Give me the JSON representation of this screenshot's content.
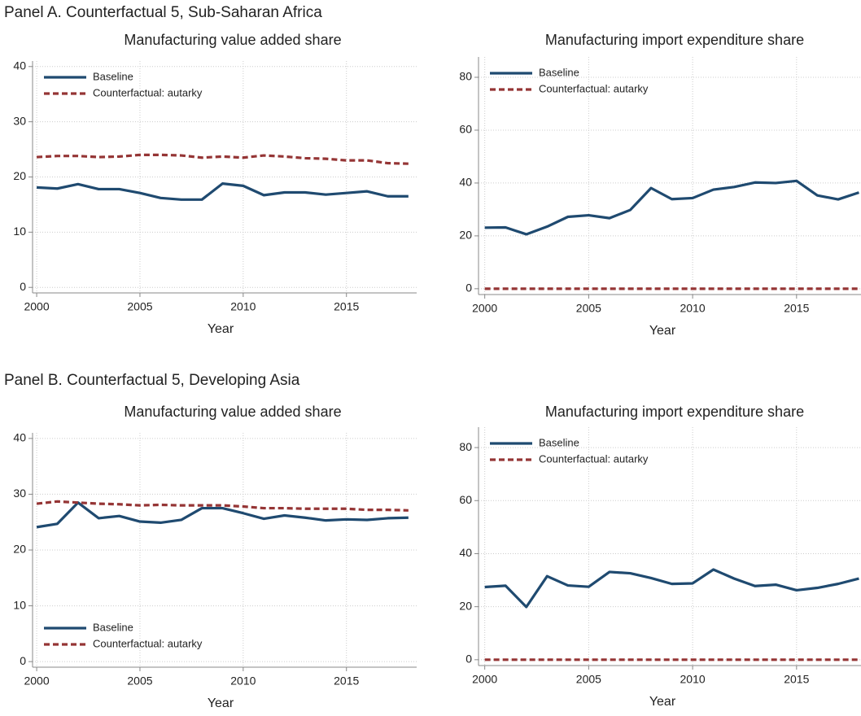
{
  "panels": [
    "Panel A. Counterfactual 5, Sub-Saharan Africa",
    "Panel B. Counterfactual 5, Developing Asia"
  ],
  "chart_data": [
    {
      "type": "line",
      "title": "Manufacturing value added share",
      "xlabel": "Year",
      "x": [
        2000,
        2001,
        2002,
        2003,
        2004,
        2005,
        2006,
        2007,
        2008,
        2009,
        2010,
        2011,
        2012,
        2013,
        2014,
        2015,
        2016,
        2017,
        2018
      ],
      "xlim": [
        1999.8,
        2018.4
      ],
      "xticks": [
        2000,
        2005,
        2010,
        2015
      ],
      "ylim": [
        -1,
        41
      ],
      "yticks": [
        0,
        10,
        20,
        30,
        40
      ],
      "grid": true,
      "legend": "upper left",
      "series": [
        {
          "name": "Baseline",
          "color": "#1f4a70",
          "linestyle": "solid",
          "values": [
            18.1,
            17.9,
            18.7,
            17.8,
            17.8,
            17.1,
            16.2,
            15.9,
            15.9,
            18.8,
            18.4,
            16.7,
            17.2,
            17.2,
            16.8,
            17.1,
            17.4,
            16.5,
            16.5
          ]
        },
        {
          "name": "Counterfactual: autarky",
          "color": "#953535",
          "linestyle": "dashed",
          "values": [
            23.6,
            23.8,
            23.8,
            23.6,
            23.7,
            24.0,
            24.0,
            23.9,
            23.5,
            23.7,
            23.5,
            23.9,
            23.7,
            23.4,
            23.3,
            23.0,
            23.0,
            22.5,
            22.4
          ]
        }
      ]
    },
    {
      "type": "line",
      "title": "Manufacturing import expenditure share",
      "xlabel": "Year",
      "x": [
        2000,
        2001,
        2002,
        2003,
        2004,
        2005,
        2006,
        2007,
        2008,
        2009,
        2010,
        2011,
        2012,
        2013,
        2014,
        2015,
        2016,
        2017,
        2018
      ],
      "xlim": [
        1999.7,
        2018.1
      ],
      "xticks": [
        2000,
        2005,
        2010,
        2015
      ],
      "ylim": [
        -2.2,
        87.7
      ],
      "yticks": [
        0,
        20,
        40,
        60,
        80
      ],
      "grid": true,
      "legend": "upper left",
      "series": [
        {
          "name": "Baseline",
          "color": "#1f4a70",
          "linestyle": "solid",
          "values": [
            23.1,
            23.2,
            20.6,
            23.5,
            27.2,
            27.8,
            26.7,
            29.8,
            38.1,
            33.9,
            34.3,
            37.5,
            38.5,
            40.2,
            40.0,
            40.8,
            35.3,
            33.8,
            36.4
          ]
        },
        {
          "name": "Counterfactual: autarky",
          "color": "#953535",
          "linestyle": "dashed",
          "values": [
            0,
            0,
            0,
            0,
            0,
            0,
            0,
            0,
            0,
            0,
            0,
            0,
            0,
            0,
            0,
            0,
            0,
            0,
            0
          ]
        }
      ]
    },
    {
      "type": "line",
      "title": "Manufacturing value added share",
      "xlabel": "Year",
      "x": [
        2000,
        2001,
        2002,
        2003,
        2004,
        2005,
        2006,
        2007,
        2008,
        2009,
        2010,
        2011,
        2012,
        2013,
        2014,
        2015,
        2016,
        2017,
        2018
      ],
      "xlim": [
        1999.8,
        2018.4
      ],
      "xticks": [
        2000,
        2005,
        2010,
        2015
      ],
      "ylim": [
        -1,
        41
      ],
      "yticks": [
        0,
        10,
        20,
        30,
        40
      ],
      "grid": true,
      "legend": "lower left",
      "series": [
        {
          "name": "Baseline",
          "color": "#1f4a70",
          "linestyle": "solid",
          "values": [
            24.1,
            24.7,
            28.5,
            25.7,
            26.1,
            25.1,
            24.9,
            25.4,
            27.5,
            27.5,
            26.6,
            25.6,
            26.2,
            25.8,
            25.3,
            25.5,
            25.4,
            25.7,
            25.8
          ]
        },
        {
          "name": "Counterfactual: autarky",
          "color": "#953535",
          "linestyle": "dashed",
          "values": [
            28.3,
            28.7,
            28.5,
            28.3,
            28.2,
            28.0,
            28.1,
            28.0,
            28.0,
            28.0,
            27.8,
            27.5,
            27.5,
            27.4,
            27.4,
            27.4,
            27.2,
            27.2,
            27.1
          ]
        }
      ]
    },
    {
      "type": "line",
      "title": "Manufacturing import expenditure share",
      "xlabel": "Year",
      "x": [
        2000,
        2001,
        2002,
        2003,
        2004,
        2005,
        2006,
        2007,
        2008,
        2009,
        2010,
        2011,
        2012,
        2013,
        2014,
        2015,
        2016,
        2017,
        2018
      ],
      "xlim": [
        1999.7,
        2018.1
      ],
      "xticks": [
        2000,
        2005,
        2010,
        2015
      ],
      "ylim": [
        -2.2,
        87.7
      ],
      "yticks": [
        0,
        20,
        40,
        60,
        80
      ],
      "grid": true,
      "legend": "upper left",
      "series": [
        {
          "name": "Baseline",
          "color": "#1f4a70",
          "linestyle": "solid",
          "values": [
            27.4,
            27.9,
            19.9,
            31.5,
            28.0,
            27.5,
            33.1,
            32.6,
            30.8,
            28.6,
            28.8,
            34.0,
            30.6,
            27.8,
            28.3,
            26.2,
            27.1,
            28.6,
            30.6
          ]
        },
        {
          "name": "Counterfactual: autarky",
          "color": "#953535",
          "linestyle": "dashed",
          "values": [
            0,
            0,
            0,
            0,
            0,
            0,
            0,
            0,
            0,
            0,
            0,
            0,
            0,
            0,
            0,
            0,
            0,
            0,
            0
          ]
        }
      ]
    }
  ]
}
